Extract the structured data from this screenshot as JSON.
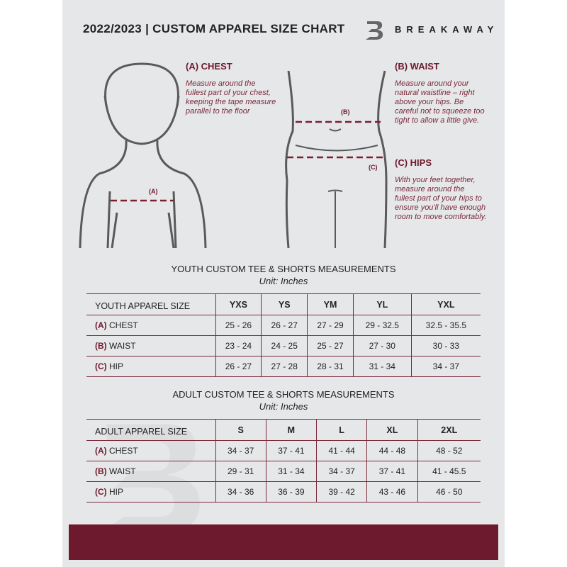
{
  "header": {
    "title": "2022/2023 | CUSTOM APPAREL SIZE CHART",
    "brand": "BREAKAWAY",
    "logo_letter": "B"
  },
  "guide": {
    "chest": {
      "title": "(A) CHEST",
      "label": "(A)",
      "text": "Measure around the fullest part of your chest, keeping the tape measure parallel to the floor"
    },
    "waist": {
      "title": "(B) WAIST",
      "label": "(B)",
      "text": "Measure around your natural waistline – right above your hips. Be careful not to squeeze too tight to allow a little give."
    },
    "hips": {
      "title": "(C) HIPS",
      "label": "(C)",
      "text": "With your feet together, measure around the fullest part of your hips to ensure you'll have enough room to move comfortably."
    }
  },
  "youth": {
    "title": "YOUTH CUSTOM TEE & SHORTS MEASUREMENTS",
    "unit": "Unit: Inches",
    "header": "YOUTH APPAREL SIZE",
    "sizes": [
      "YXS",
      "YS",
      "YM",
      "YL",
      "YXL"
    ],
    "rows": [
      {
        "key": "(A)",
        "name": "CHEST",
        "values": [
          "25 - 26",
          "26 - 27",
          "27 - 29",
          "29 - 32.5",
          "32.5 - 35.5"
        ]
      },
      {
        "key": "(B)",
        "name": "WAIST",
        "values": [
          "23 - 24",
          "24 - 25",
          "25 - 27",
          "27 - 30",
          "30 - 33"
        ]
      },
      {
        "key": "(C)",
        "name": "HIP",
        "values": [
          "26 - 27",
          "27 - 28",
          "28 - 31",
          "31 - 34",
          "34 - 37"
        ]
      }
    ]
  },
  "adult": {
    "title": "ADULT CUSTOM TEE & SHORTS MEASUREMENTS",
    "unit": "Unit: Inches",
    "header": "ADULT APPAREL SIZE",
    "sizes": [
      "S",
      "M",
      "L",
      "XL",
      "2XL"
    ],
    "rows": [
      {
        "key": "(A)",
        "name": "CHEST",
        "values": [
          "34 - 37",
          "37 - 41",
          "41 - 44",
          "44 - 48",
          "48 - 52"
        ]
      },
      {
        "key": "(B)",
        "name": "WAIST",
        "values": [
          "29 - 31",
          "31 - 34",
          "34 - 37",
          "37 - 41",
          "41 - 45.5"
        ]
      },
      {
        "key": "(C)",
        "name": "HIP",
        "values": [
          "34 - 36",
          "36 - 39",
          "39 - 42",
          "43 - 46",
          "46 - 50"
        ]
      }
    ]
  },
  "colors": {
    "accent": "#6d1a2e",
    "background": "#e6e7e8",
    "outline": "#555555"
  }
}
